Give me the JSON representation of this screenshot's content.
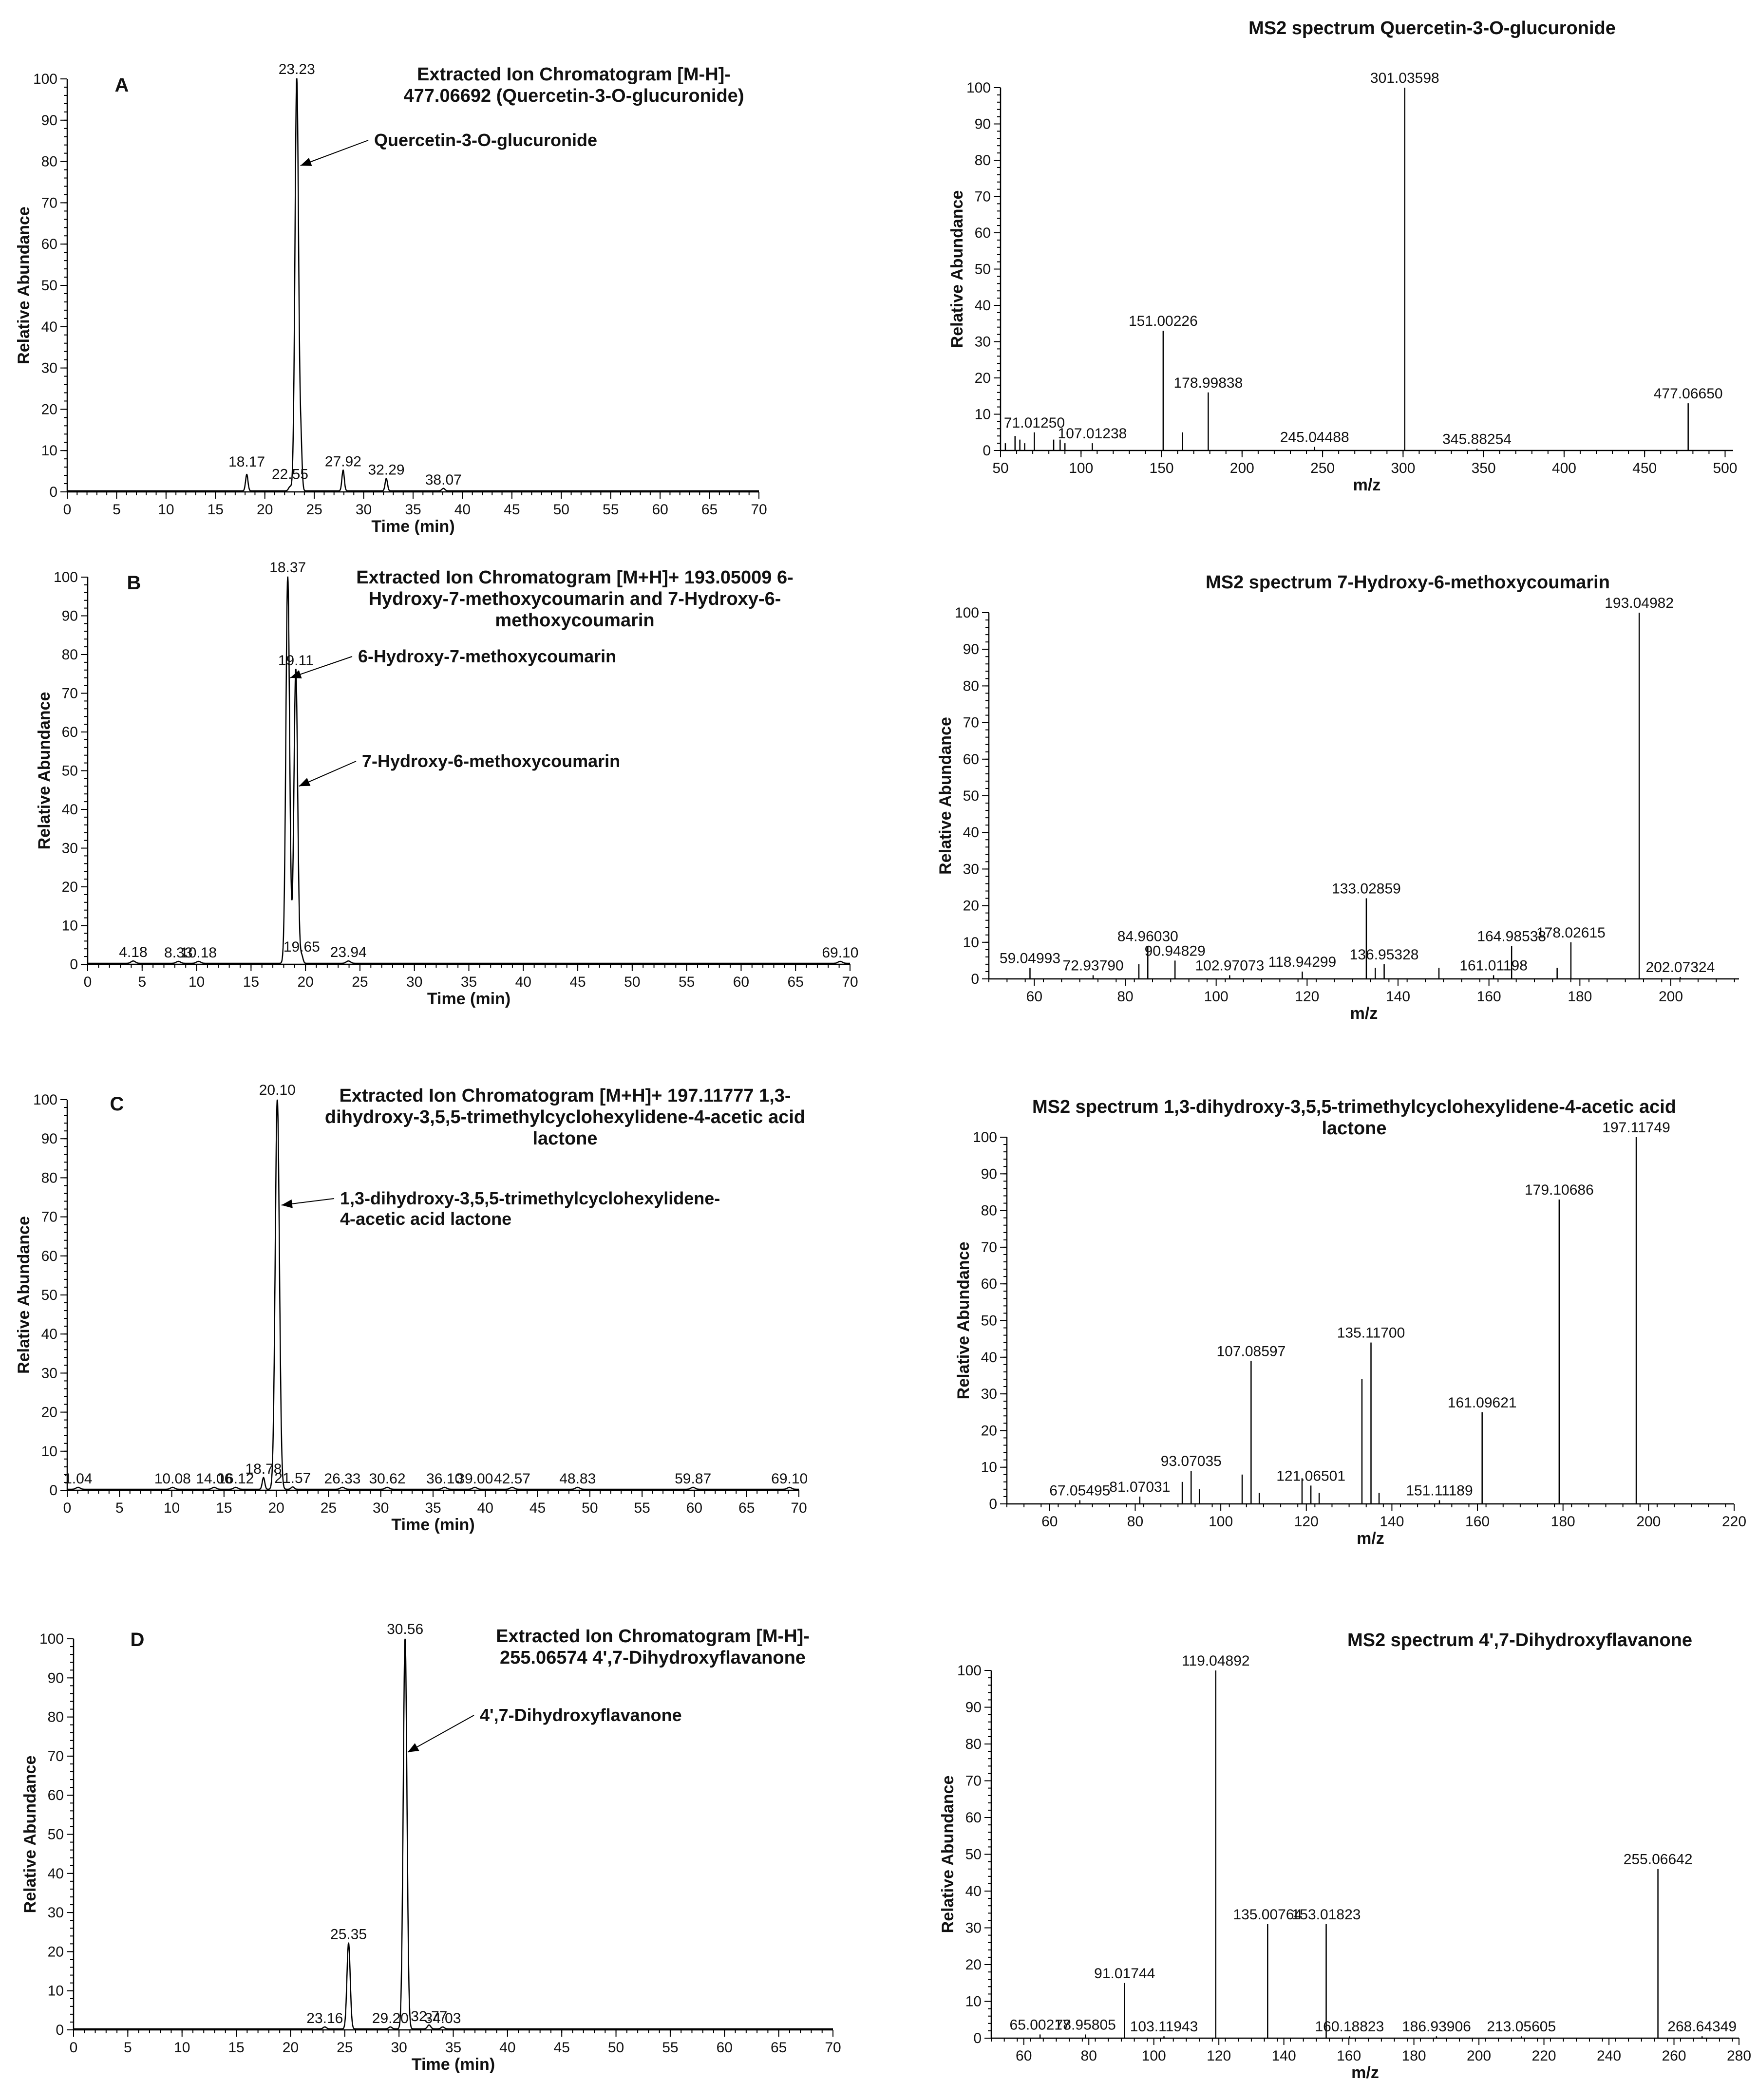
{
  "chart_data": [
    {
      "id": "chrom-a",
      "type": "line",
      "panel_letter": "A",
      "title": [
        "Extracted Ion Chromatogram [M-H]-",
        "477.06692 (Quercetin-3-O-glucuronide)"
      ],
      "xlabel": "Time (min)",
      "ylabel": "Relative Abundance",
      "xlim": [
        0,
        70
      ],
      "ylim": [
        0,
        100
      ],
      "x_ticks": [
        0,
        5,
        10,
        15,
        20,
        25,
        30,
        35,
        40,
        45,
        50,
        55,
        60,
        65,
        70
      ],
      "y_ticks": [
        0,
        10,
        20,
        30,
        40,
        50,
        60,
        70,
        80,
        90,
        100
      ],
      "peaks": [
        {
          "x": 18.17,
          "y": 4,
          "w": 0.12,
          "label": "18.17"
        },
        {
          "x": 22.55,
          "y": 1,
          "w": 0.15,
          "label": "22.55"
        },
        {
          "x": 23.23,
          "y": 100,
          "w": 0.18,
          "label": "23.23"
        },
        {
          "x": 23.65,
          "y": 10,
          "w": 0.12,
          "label": ""
        },
        {
          "x": 27.92,
          "y": 5,
          "w": 0.12,
          "label": "27.92"
        },
        {
          "x": 32.29,
          "y": 3,
          "w": 0.12,
          "label": "32.29"
        },
        {
          "x": 38.07,
          "y": 0.6,
          "w": 0.15,
          "label": "38.07"
        }
      ],
      "annotations": [
        {
          "text": "Quercetin-3-O-glucuronide",
          "target_x": 23.6,
          "target_y": 79
        }
      ]
    },
    {
      "id": "ms2-a",
      "type": "bar",
      "title": [
        "MS2 spectrum Quercetin-3-O-glucuronide"
      ],
      "xlabel": "m/z",
      "ylabel": "Relative Abundance",
      "xlim": [
        50,
        505
      ],
      "ylim": [
        0,
        100
      ],
      "x_ticks": [
        50,
        100,
        150,
        200,
        250,
        300,
        350,
        400,
        450,
        500
      ],
      "y_ticks": [
        0,
        10,
        20,
        30,
        40,
        50,
        60,
        70,
        80,
        90,
        100
      ],
      "peaks": [
        {
          "x": 53,
          "y": 2
        },
        {
          "x": 59,
          "y": 4
        },
        {
          "x": 62,
          "y": 3
        },
        {
          "x": 65,
          "y": 2
        },
        {
          "x": 71.0125,
          "y": 5,
          "label": "71.01250"
        },
        {
          "x": 83,
          "y": 3
        },
        {
          "x": 87,
          "y": 3
        },
        {
          "x": 90,
          "y": 2
        },
        {
          "x": 107.01238,
          "y": 2,
          "label": "107.01238"
        },
        {
          "x": 151.00226,
          "y": 33,
          "label": "151.00226"
        },
        {
          "x": 163,
          "y": 5
        },
        {
          "x": 178.99838,
          "y": 16,
          "label": "178.99838"
        },
        {
          "x": 245.04488,
          "y": 1,
          "label": "245.04488"
        },
        {
          "x": 301.03598,
          "y": 100,
          "label": "301.03598"
        },
        {
          "x": 345.88254,
          "y": 0.5,
          "label": "345.88254"
        },
        {
          "x": 477.0665,
          "y": 13,
          "label": "477.06650"
        }
      ]
    },
    {
      "id": "chrom-b",
      "type": "line",
      "panel_letter": "B",
      "title": [
        "Extracted Ion Chromatogram [M+H]+ 193.05009 6-",
        "Hydroxy-7-methoxycoumarin and 7-Hydroxy-6-",
        "methoxycoumarin"
      ],
      "xlabel": "Time (min)",
      "ylabel": "Relative Abundance",
      "xlim": [
        0,
        70
      ],
      "ylim": [
        0,
        100
      ],
      "x_ticks": [
        0,
        5,
        10,
        15,
        20,
        25,
        30,
        35,
        40,
        45,
        50,
        55,
        60,
        65,
        70
      ],
      "y_ticks": [
        0,
        10,
        20,
        30,
        40,
        50,
        60,
        70,
        80,
        90,
        100
      ],
      "peaks": [
        {
          "x": 4.18,
          "y": 0.6,
          "w": 0.2,
          "label": "4.18"
        },
        {
          "x": 8.33,
          "y": 0.5,
          "w": 0.2,
          "label": "8.33"
        },
        {
          "x": 10.18,
          "y": 0.5,
          "w": 0.2,
          "label": "10.18"
        },
        {
          "x": 18.37,
          "y": 100,
          "w": 0.17,
          "label": "18.37"
        },
        {
          "x": 19.11,
          "y": 76,
          "w": 0.17,
          "label": "19.11"
        },
        {
          "x": 19.65,
          "y": 2,
          "w": 0.12,
          "label": "19.65"
        },
        {
          "x": 23.94,
          "y": 0.6,
          "w": 0.2,
          "label": "23.94"
        },
        {
          "x": 69.1,
          "y": 0.5,
          "w": 0.2,
          "label": "69.10"
        }
      ],
      "annotations": [
        {
          "text": "6-Hydroxy-7-methoxycoumarin",
          "target_x": 18.6,
          "target_y": 74
        },
        {
          "text": "7-Hydroxy-6-methoxycoumarin",
          "target_x": 19.4,
          "target_y": 46
        }
      ]
    },
    {
      "id": "ms2-b",
      "type": "bar",
      "title": [
        "MS2 spectrum 7-Hydroxy-6-methoxycoumarin"
      ],
      "xlabel": "m/z",
      "ylabel": "Relative Abundance",
      "xlim": [
        50,
        215
      ],
      "ylim": [
        0,
        100
      ],
      "x_ticks": [
        60,
        80,
        100,
        120,
        140,
        160,
        180,
        200
      ],
      "y_ticks": [
        0,
        10,
        20,
        30,
        40,
        50,
        60,
        70,
        80,
        90,
        100
      ],
      "peaks": [
        {
          "x": 59.04993,
          "y": 3,
          "label": "59.04993"
        },
        {
          "x": 72.9379,
          "y": 1,
          "label": "72.93790"
        },
        {
          "x": 83,
          "y": 4
        },
        {
          "x": 84.9603,
          "y": 9,
          "label": "84.96030"
        },
        {
          "x": 90.94829,
          "y": 5,
          "label": "90.94829"
        },
        {
          "x": 102.97073,
          "y": 1,
          "label": "102.97073"
        },
        {
          "x": 118.94299,
          "y": 2,
          "label": "118.94299"
        },
        {
          "x": 133.02859,
          "y": 22,
          "label": "133.02859"
        },
        {
          "x": 135,
          "y": 3
        },
        {
          "x": 136.95328,
          "y": 4,
          "label": "136.95328"
        },
        {
          "x": 149,
          "y": 3
        },
        {
          "x": 161.01198,
          "y": 1,
          "label": "161.01198"
        },
        {
          "x": 164.98538,
          "y": 9,
          "label": "164.98538"
        },
        {
          "x": 175,
          "y": 3
        },
        {
          "x": 178.02615,
          "y": 10,
          "label": "178.02615"
        },
        {
          "x": 193.04982,
          "y": 100,
          "label": "193.04982"
        },
        {
          "x": 202.07324,
          "y": 0.5,
          "label": "202.07324"
        }
      ]
    },
    {
      "id": "chrom-c",
      "type": "line",
      "panel_letter": "C",
      "title": [
        "Extracted Ion Chromatogram  [M+H]+ 197.11777 1,3-",
        "dihydroxy-3,5,5-trimethylcyclohexylidene-4-acetic acid",
        "lactone"
      ],
      "xlabel": "Time (min)",
      "ylabel": "Relative Abundance",
      "xlim": [
        0,
        70
      ],
      "ylim": [
        0,
        100
      ],
      "x_ticks": [
        0,
        5,
        10,
        15,
        20,
        25,
        30,
        35,
        40,
        45,
        50,
        55,
        60,
        65,
        70
      ],
      "y_ticks": [
        0,
        10,
        20,
        30,
        40,
        50,
        60,
        70,
        80,
        90,
        100
      ],
      "peaks": [
        {
          "x": 1.04,
          "y": 0.5,
          "w": 0.2,
          "label": "1.04"
        },
        {
          "x": 10.08,
          "y": 0.5,
          "w": 0.2,
          "label": "10.08"
        },
        {
          "x": 14.06,
          "y": 0.5,
          "w": 0.2,
          "label": "14.06"
        },
        {
          "x": 16.12,
          "y": 0.5,
          "w": 0.2,
          "label": "16.12"
        },
        {
          "x": 18.78,
          "y": 3,
          "w": 0.12,
          "label": "18.78"
        },
        {
          "x": 20.1,
          "y": 100,
          "w": 0.2,
          "label": "20.10"
        },
        {
          "x": 21.57,
          "y": 0.6,
          "w": 0.15,
          "label": "21.57"
        },
        {
          "x": 26.33,
          "y": 0.5,
          "w": 0.2,
          "label": "26.33"
        },
        {
          "x": 30.62,
          "y": 0.5,
          "w": 0.2,
          "label": "30.62"
        },
        {
          "x": 36.1,
          "y": 0.5,
          "w": 0.2,
          "label": "36.10"
        },
        {
          "x": 39.0,
          "y": 0.5,
          "w": 0.2,
          "label": "39.00"
        },
        {
          "x": 42.57,
          "y": 0.5,
          "w": 0.2,
          "label": "42.57"
        },
        {
          "x": 48.83,
          "y": 0.5,
          "w": 0.2,
          "label": "48.83"
        },
        {
          "x": 59.87,
          "y": 0.5,
          "w": 0.2,
          "label": "59.87"
        },
        {
          "x": 69.1,
          "y": 0.5,
          "w": 0.2,
          "label": "69.10"
        }
      ],
      "annotations": [
        {
          "text": "1,3-dihydroxy-3,5,5-trimethylcyclohexylidene-",
          "text2": "4-acetic acid lactone",
          "target_x": 20.5,
          "target_y": 73
        }
      ]
    },
    {
      "id": "ms2-c",
      "type": "bar",
      "title": [
        "MS2 spectrum 1,3-dihydroxy-3,5,5-trimethylcyclohexylidene-4-acetic acid",
        "lactone"
      ],
      "xlabel": "m/z",
      "ylabel": "Relative Abundance",
      "xlim": [
        50,
        220
      ],
      "ylim": [
        0,
        100
      ],
      "x_ticks": [
        60,
        80,
        100,
        120,
        140,
        160,
        180,
        200,
        220
      ],
      "y_ticks": [
        0,
        10,
        20,
        30,
        40,
        50,
        60,
        70,
        80,
        90,
        100
      ],
      "peaks": [
        {
          "x": 67.05495,
          "y": 1,
          "label": "67.05495"
        },
        {
          "x": 81.07031,
          "y": 2,
          "label": "81.07031"
        },
        {
          "x": 91,
          "y": 6
        },
        {
          "x": 93.07035,
          "y": 9,
          "label": "93.07035"
        },
        {
          "x": 95,
          "y": 4
        },
        {
          "x": 105,
          "y": 8
        },
        {
          "x": 107.08597,
          "y": 39,
          "label": "107.08597"
        },
        {
          "x": 109,
          "y": 3
        },
        {
          "x": 119,
          "y": 7
        },
        {
          "x": 121.06501,
          "y": 5,
          "label": "121.06501"
        },
        {
          "x": 123,
          "y": 3
        },
        {
          "x": 133,
          "y": 34
        },
        {
          "x": 135.117,
          "y": 44,
          "label": "135.11700"
        },
        {
          "x": 137,
          "y": 3
        },
        {
          "x": 151.11189,
          "y": 1,
          "label": "151.11189"
        },
        {
          "x": 161.09621,
          "y": 25,
          "label": "161.09621"
        },
        {
          "x": 179.10686,
          "y": 83,
          "label": "179.10686"
        },
        {
          "x": 197.11749,
          "y": 100,
          "label": "197.11749"
        }
      ]
    },
    {
      "id": "chrom-d",
      "type": "line",
      "panel_letter": "D",
      "title": [
        "Extracted Ion Chromatogram [M-H]-",
        "255.06574 4',7-Dihydroxyflavanone"
      ],
      "xlabel": "Time (min)",
      "ylabel": "Relative Abundance",
      "xlim": [
        0,
        70
      ],
      "ylim": [
        0,
        100
      ],
      "x_ticks": [
        0,
        5,
        10,
        15,
        20,
        25,
        30,
        35,
        40,
        45,
        50,
        55,
        60,
        65,
        70
      ],
      "y_ticks": [
        0,
        10,
        20,
        30,
        40,
        50,
        60,
        70,
        80,
        90,
        100
      ],
      "peaks": [
        {
          "x": 23.16,
          "y": 0.5,
          "w": 0.15,
          "label": "23.16"
        },
        {
          "x": 25.35,
          "y": 22,
          "w": 0.15,
          "label": "25.35"
        },
        {
          "x": 29.2,
          "y": 0.5,
          "w": 0.15,
          "label": "29.20"
        },
        {
          "x": 30.56,
          "y": 100,
          "w": 0.17,
          "label": "30.56"
        },
        {
          "x": 32.77,
          "y": 1,
          "w": 0.15,
          "label": "32.77"
        },
        {
          "x": 34.03,
          "y": 0.5,
          "w": 0.15,
          "label": "34.03"
        }
      ],
      "annotations": [
        {
          "text": "4',7-Dihydroxyflavanone",
          "target_x": 30.8,
          "target_y": 71
        }
      ]
    },
    {
      "id": "ms2-d",
      "type": "bar",
      "title": [
        "MS2 spectrum 4',7-Dihydroxyflavanone"
      ],
      "xlabel": "m/z",
      "ylabel": "Relative Abundance",
      "xlim": [
        50,
        280
      ],
      "ylim": [
        0,
        100
      ],
      "x_ticks": [
        60,
        80,
        100,
        120,
        140,
        160,
        180,
        200,
        220,
        240,
        260,
        280
      ],
      "y_ticks": [
        0,
        10,
        20,
        30,
        40,
        50,
        60,
        70,
        80,
        90,
        100
      ],
      "peaks": [
        {
          "x": 65.00217,
          "y": 1,
          "label": "65.00217"
        },
        {
          "x": 78.95805,
          "y": 1,
          "label": "78.95805"
        },
        {
          "x": 91.01744,
          "y": 15,
          "label": "91.01744"
        },
        {
          "x": 103.11943,
          "y": 0.5,
          "label": "103.11943"
        },
        {
          "x": 119.04892,
          "y": 100,
          "label": "119.04892"
        },
        {
          "x": 135.00764,
          "y": 31,
          "label": "135.00764"
        },
        {
          "x": 153.01823,
          "y": 31,
          "label": "153.01823"
        },
        {
          "x": 160.18823,
          "y": 0.5,
          "label": "160.18823"
        },
        {
          "x": 186.93906,
          "y": 0.5,
          "label": "186.93906"
        },
        {
          "x": 213.05605,
          "y": 0.5,
          "label": "213.05605"
        },
        {
          "x": 255.06642,
          "y": 46,
          "label": "255.06642"
        },
        {
          "x": 268.64349,
          "y": 0.5,
          "label": "268.64349"
        }
      ]
    }
  ]
}
